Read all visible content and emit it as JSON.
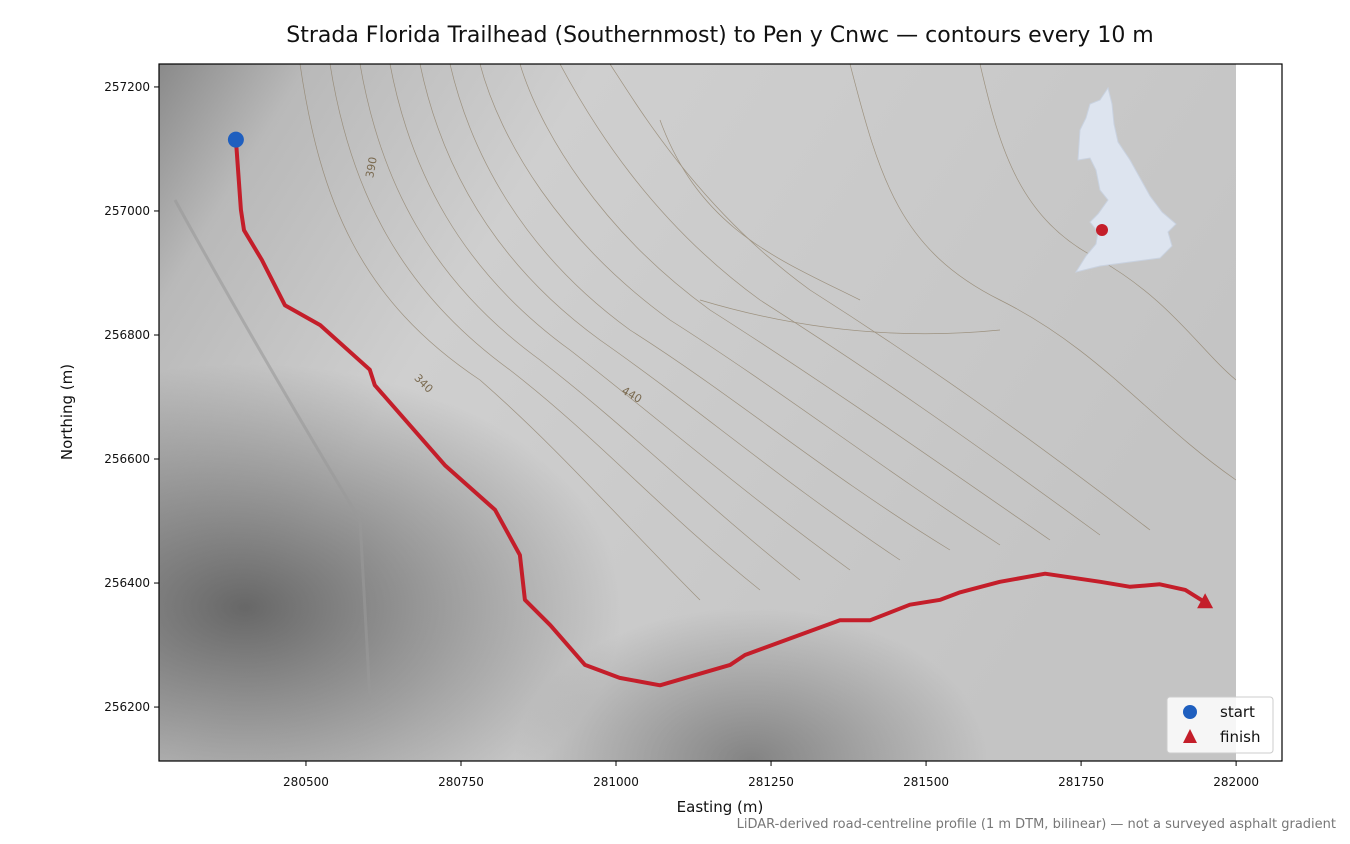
{
  "chart_data": {
    "type": "route-map",
    "title": "Strada Florida Trailhead (Southernmost) to Pen y Cnwc — contours every 10 m",
    "xlabel": "Easting (m)",
    "ylabel": "Northing (m)",
    "footnote": "LiDAR-derived road-centreline profile (1 m DTM, bilinear) — not a surveyed asphalt gradient",
    "xlim": [
      280263,
      282074
    ],
    "ylim": [
      256113,
      257237
    ],
    "xticks": [
      280500,
      280750,
      281000,
      281250,
      281500,
      281750,
      282000
    ],
    "yticks": [
      256200,
      256400,
      256600,
      256800,
      257000,
      257200
    ],
    "contour_labels": [
      390,
      340,
      440
    ],
    "legend_loc": "lower right",
    "route": {
      "color": "#c41e2a",
      "x": [
        280387,
        280395,
        280400,
        280429,
        280466,
        280523,
        280603,
        280611,
        280724,
        280805,
        280845,
        280853,
        280894,
        280950,
        281006,
        281071,
        281184,
        281208,
        281361,
        281410,
        281474,
        281523,
        281555,
        281619,
        281692,
        281781,
        281829,
        281877,
        281918,
        281950
      ],
      "y": [
        257115,
        257002,
        256969,
        256921,
        256848,
        256816,
        256744,
        256719,
        256590,
        256518,
        256445,
        256373,
        256332,
        256268,
        256247,
        256235,
        256268,
        256284,
        256340,
        256340,
        256365,
        256373,
        256385,
        256402,
        256415,
        256402,
        256394,
        256398,
        256389,
        256369
      ]
    },
    "markers": [
      {
        "name": "start",
        "color": "#1f5fbf",
        "marker": "circle",
        "x": [
          280387
        ],
        "y": [
          257115
        ]
      },
      {
        "name": "finish",
        "color": "#c41e2a",
        "marker": "triangle",
        "x": [
          281950
        ],
        "y": [
          256369
        ]
      }
    ]
  }
}
